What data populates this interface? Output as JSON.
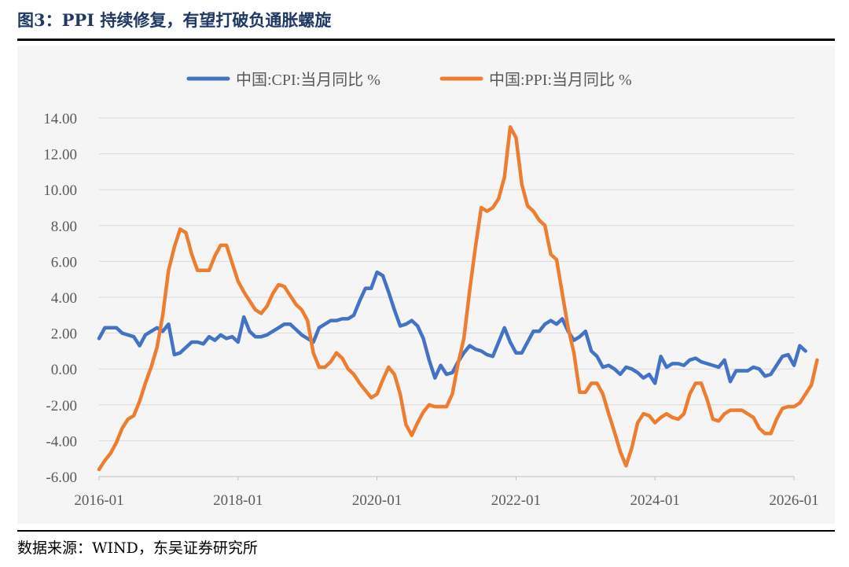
{
  "title": "图3：PPI 持续修复，有望打破负通胀螺旋",
  "source": "数据来源：WIND，东吴证券研究所",
  "colors": {
    "cpi": "#4472c4",
    "ppi": "#ed7d31",
    "grid": "#d9d9d9",
    "axis_text": "#595959"
  },
  "chart_data": {
    "type": "line",
    "title": "图3：PPI 持续修复，有望打破负通胀螺旋",
    "xlabel": "",
    "ylabel": "",
    "ylim": [
      -6,
      14
    ],
    "yticks": [
      -6,
      -4,
      -2,
      0,
      2,
      4,
      6,
      8,
      10,
      12,
      14
    ],
    "y_tick_labels": [
      "-6.00",
      "-4.00",
      "-2.00",
      "0.00",
      "2.00",
      "4.00",
      "6.00",
      "8.00",
      "10.00",
      "12.00",
      "14.00"
    ],
    "x_range": [
      "2016-01",
      "2026-01"
    ],
    "x_tick_labels": [
      "2016-01",
      "2018-01",
      "2020-01",
      "2022-01",
      "2024-01",
      "2026-01"
    ],
    "x_tick_months": [
      0,
      24,
      48,
      72,
      96,
      120
    ],
    "legend_position": "top-center",
    "grid": true,
    "series": [
      {
        "name": "中国:CPI:当月同比 %",
        "color": "#4472c4",
        "start": "2016-01",
        "values": [
          1.7,
          2.3,
          2.3,
          2.3,
          2.0,
          1.9,
          1.8,
          1.3,
          1.9,
          2.1,
          2.3,
          2.1,
          2.5,
          0.8,
          0.9,
          1.2,
          1.5,
          1.5,
          1.4,
          1.8,
          1.6,
          1.9,
          1.7,
          1.8,
          1.5,
          2.9,
          2.1,
          1.8,
          1.8,
          1.9,
          2.1,
          2.3,
          2.5,
          2.5,
          2.2,
          1.9,
          1.7,
          1.5,
          2.3,
          2.5,
          2.7,
          2.7,
          2.8,
          2.8,
          3.0,
          3.8,
          4.5,
          4.5,
          5.4,
          5.2,
          4.3,
          3.3,
          2.4,
          2.5,
          2.7,
          2.4,
          1.7,
          0.5,
          -0.5,
          0.2,
          -0.3,
          -0.2,
          0.4,
          0.9,
          1.3,
          1.1,
          1.0,
          0.8,
          0.7,
          1.5,
          2.3,
          1.5,
          0.9,
          0.9,
          1.5,
          2.1,
          2.1,
          2.5,
          2.7,
          2.5,
          2.8,
          2.1,
          1.6,
          1.8,
          2.1,
          1.0,
          0.7,
          0.1,
          0.2,
          0.0,
          -0.3,
          0.1,
          0.0,
          -0.2,
          -0.5,
          -0.3,
          -0.8,
          0.7,
          0.1,
          0.3,
          0.3,
          0.2,
          0.5,
          0.6,
          0.4,
          0.3,
          0.2,
          0.1,
          0.5,
          -0.7,
          -0.1,
          -0.1,
          -0.1,
          0.1,
          0.0,
          -0.4,
          -0.3,
          0.2,
          0.7,
          0.8,
          0.2,
          1.3,
          1.0
        ]
      },
      {
        "name": "中国:PPI:当月同比 %",
        "color": "#ed7d31",
        "start": "2016-01",
        "values": [
          -5.6,
          -5.1,
          -4.7,
          -4.1,
          -3.3,
          -2.8,
          -2.6,
          -1.8,
          -0.8,
          0.1,
          1.2,
          3.0,
          5.5,
          6.8,
          7.8,
          7.6,
          6.4,
          5.5,
          5.5,
          5.5,
          6.3,
          6.9,
          6.9,
          5.9,
          4.9,
          4.3,
          3.8,
          3.3,
          3.1,
          3.5,
          4.2,
          4.7,
          4.6,
          4.1,
          3.6,
          3.3,
          2.7,
          0.9,
          0.1,
          0.1,
          0.4,
          0.9,
          0.6,
          0.0,
          -0.3,
          -0.8,
          -1.2,
          -1.6,
          -1.4,
          -0.6,
          0.1,
          -0.3,
          -1.4,
          -3.1,
          -3.7,
          -3.0,
          -2.4,
          -2.0,
          -2.1,
          -2.1,
          -2.1,
          -1.4,
          0.3,
          1.7,
          4.4,
          6.8,
          9.0,
          8.8,
          9.0,
          9.5,
          10.7,
          13.5,
          12.9,
          10.3,
          9.1,
          8.8,
          8.3,
          8.0,
          6.4,
          6.1,
          4.2,
          2.3,
          0.9,
          -1.3,
          -1.3,
          -0.8,
          -0.8,
          -1.4,
          -2.5,
          -3.5,
          -4.6,
          -5.4,
          -4.4,
          -3.0,
          -2.5,
          -2.6,
          -3.0,
          -2.7,
          -2.5,
          -2.7,
          -2.8,
          -2.5,
          -1.4,
          -0.8,
          -0.8,
          -1.7,
          -2.8,
          -2.9,
          -2.5,
          -2.3,
          -2.3,
          -2.3,
          -2.5,
          -2.7,
          -3.3,
          -3.6,
          -3.6,
          -2.8,
          -2.2,
          -2.1,
          -2.1,
          -1.9,
          -1.4,
          -0.9,
          0.5
        ]
      }
    ]
  }
}
